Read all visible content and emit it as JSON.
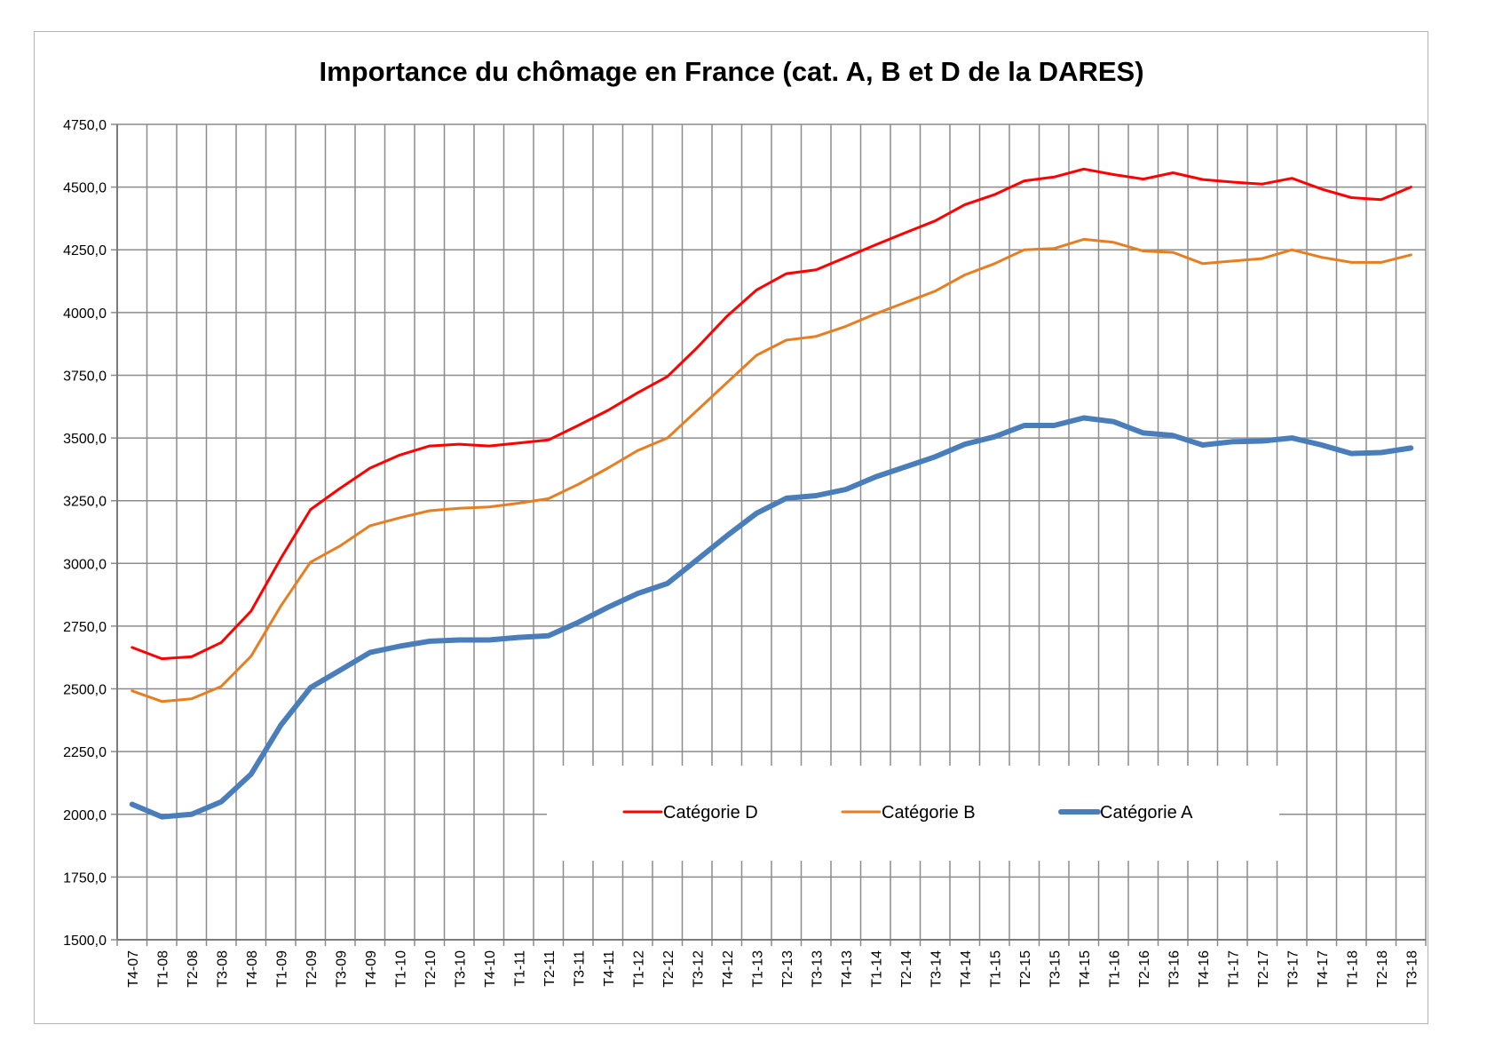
{
  "chart_data": {
    "type": "line",
    "title": "Importance du chômage en France (cat. A, B et D de la DARES)",
    "xlabel": "",
    "ylabel": "",
    "ylim": [
      1500,
      4750
    ],
    "yticks": [
      "1500,0",
      "1750,0",
      "2000,0",
      "2250,0",
      "2500,0",
      "2750,0",
      "3000,0",
      "3250,0",
      "3500,0",
      "3750,0",
      "4000,0",
      "4250,0",
      "4500,0",
      "4750,0"
    ],
    "grid": true,
    "legend_position": "bottom-center",
    "categories": [
      "T4-07",
      "T1-08",
      "T2-08",
      "T3-08",
      "T4-08",
      "T1-09",
      "T2-09",
      "T3-09",
      "T4-09",
      "T1-10",
      "T2-10",
      "T3-10",
      "T4-10",
      "T1-11",
      "T2-11",
      "T3-11",
      "T4-11",
      "T1-12",
      "T2-12",
      "T3-12",
      "T4-12",
      "T1-13",
      "T2-13",
      "T3-13",
      "T4-13",
      "T1-14",
      "T2-14",
      "T3-14",
      "T4-14",
      "T1-15",
      "T2-15",
      "T3-15",
      "T4-15",
      "T1-16",
      "T2-16",
      "T3-16",
      "T4-16",
      "T1-17",
      "T2-17",
      "T3-17",
      "T4-17",
      "T1-18",
      "T2-18",
      "T3-18"
    ],
    "series": [
      {
        "name": "Catégorie D",
        "color": "#ff0000",
        "width": 3,
        "values": [
          2665,
          2620,
          2628,
          2685,
          2810,
          3020,
          3215,
          3300,
          3380,
          3432,
          3468,
          3475,
          3468,
          3480,
          3492,
          3550,
          3610,
          3680,
          3745,
          3860,
          3985,
          4090,
          4155,
          4170,
          4220,
          4270,
          4318,
          4365,
          4430,
          4470,
          4525,
          4540,
          4572,
          4550,
          4532,
          4557,
          4530,
          4520,
          4512,
          4535,
          4492,
          4458,
          4450,
          4500
        ]
      },
      {
        "name": "Catégorie B",
        "color": "#e67e22",
        "width": 3,
        "values": [
          2492,
          2450,
          2460,
          2510,
          2630,
          2830,
          3005,
          3070,
          3150,
          3182,
          3210,
          3220,
          3225,
          3240,
          3258,
          3315,
          3380,
          3450,
          3500,
          3610,
          3720,
          3830,
          3890,
          3905,
          3945,
          3995,
          4040,
          4085,
          4150,
          4195,
          4250,
          4255,
          4292,
          4280,
          4245,
          4240,
          4195,
          4205,
          4215,
          4250,
          4220,
          4200,
          4200,
          4230
        ]
      },
      {
        "name": "Catégorie A",
        "color": "#4a7ebb",
        "width": 6,
        "values": [
          2040,
          1990,
          2000,
          2050,
          2160,
          2355,
          2505,
          2575,
          2645,
          2670,
          2690,
          2695,
          2695,
          2705,
          2712,
          2765,
          2825,
          2880,
          2920,
          3015,
          3110,
          3200,
          3260,
          3270,
          3295,
          3345,
          3385,
          3425,
          3475,
          3505,
          3550,
          3550,
          3580,
          3565,
          3520,
          3510,
          3472,
          3485,
          3488,
          3500,
          3472,
          3438,
          3442,
          3460
        ]
      }
    ]
  }
}
